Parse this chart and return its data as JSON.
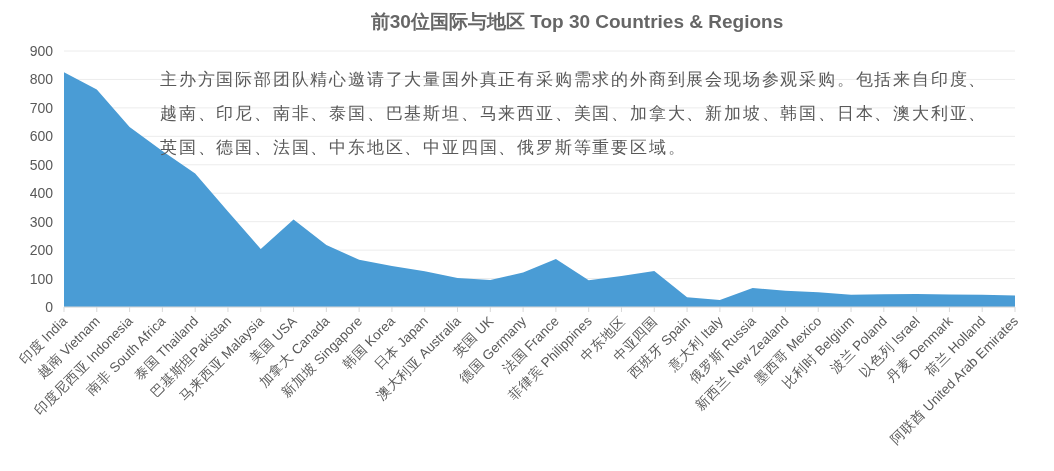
{
  "chart_data": {
    "type": "area",
    "title": "前30位国际与地区 Top 30 Countries & Regions",
    "annotations": [
      "主办方国际部团队精心邀请了大量国外真正有采购需求的外商到展会现场参观采购。包括来自印度、越南、印尼、南非、泰国、巴基斯坦、马来西亚、美国、加拿大、新加坡、韩国、日本、澳大利亚、英国、德国、法国、中东地区、中亚四国、俄罗斯等重要区域。"
    ],
    "categories": [
      "印度 India",
      "越南 Vietnam",
      "印度尼西亚 Indonesia",
      "南非 South Africa",
      "泰国 Thailand",
      "巴基斯坦Pakistan",
      "马来西亚 Malaysia",
      "美国 USA",
      "加拿大 Canada",
      "新加坡 Singapore",
      "韩国 Korea",
      "日本 Japan",
      "澳大利亚 Australia",
      "英国 UK",
      "德国 Germany",
      "法国 France",
      "菲律宾 Philippines",
      "中东地区",
      "中亚四国",
      "西班牙 Spain",
      "意大利 Italy",
      "俄罗斯 Russia",
      "新西兰 New Zealand",
      "墨西哥 Mexico",
      "比利时 Belgium",
      "波兰 Poland",
      "以色列 Israel",
      "丹麦 Denmark",
      "荷兰 Holland",
      "阿联酋 United Arab Emirates"
    ],
    "values": [
      825,
      765,
      633,
      548,
      469,
      336,
      204,
      308,
      218,
      166,
      144,
      126,
      102,
      95,
      121,
      169,
      94,
      109,
      127,
      34,
      25,
      67,
      57,
      52,
      43,
      45,
      46,
      44,
      43,
      40
    ],
    "color": "#4a9cd5",
    "ylim": [
      0,
      900
    ],
    "yticks": [
      0,
      100,
      200,
      300,
      400,
      500,
      600,
      700,
      800,
      900
    ],
    "grid": "y"
  }
}
